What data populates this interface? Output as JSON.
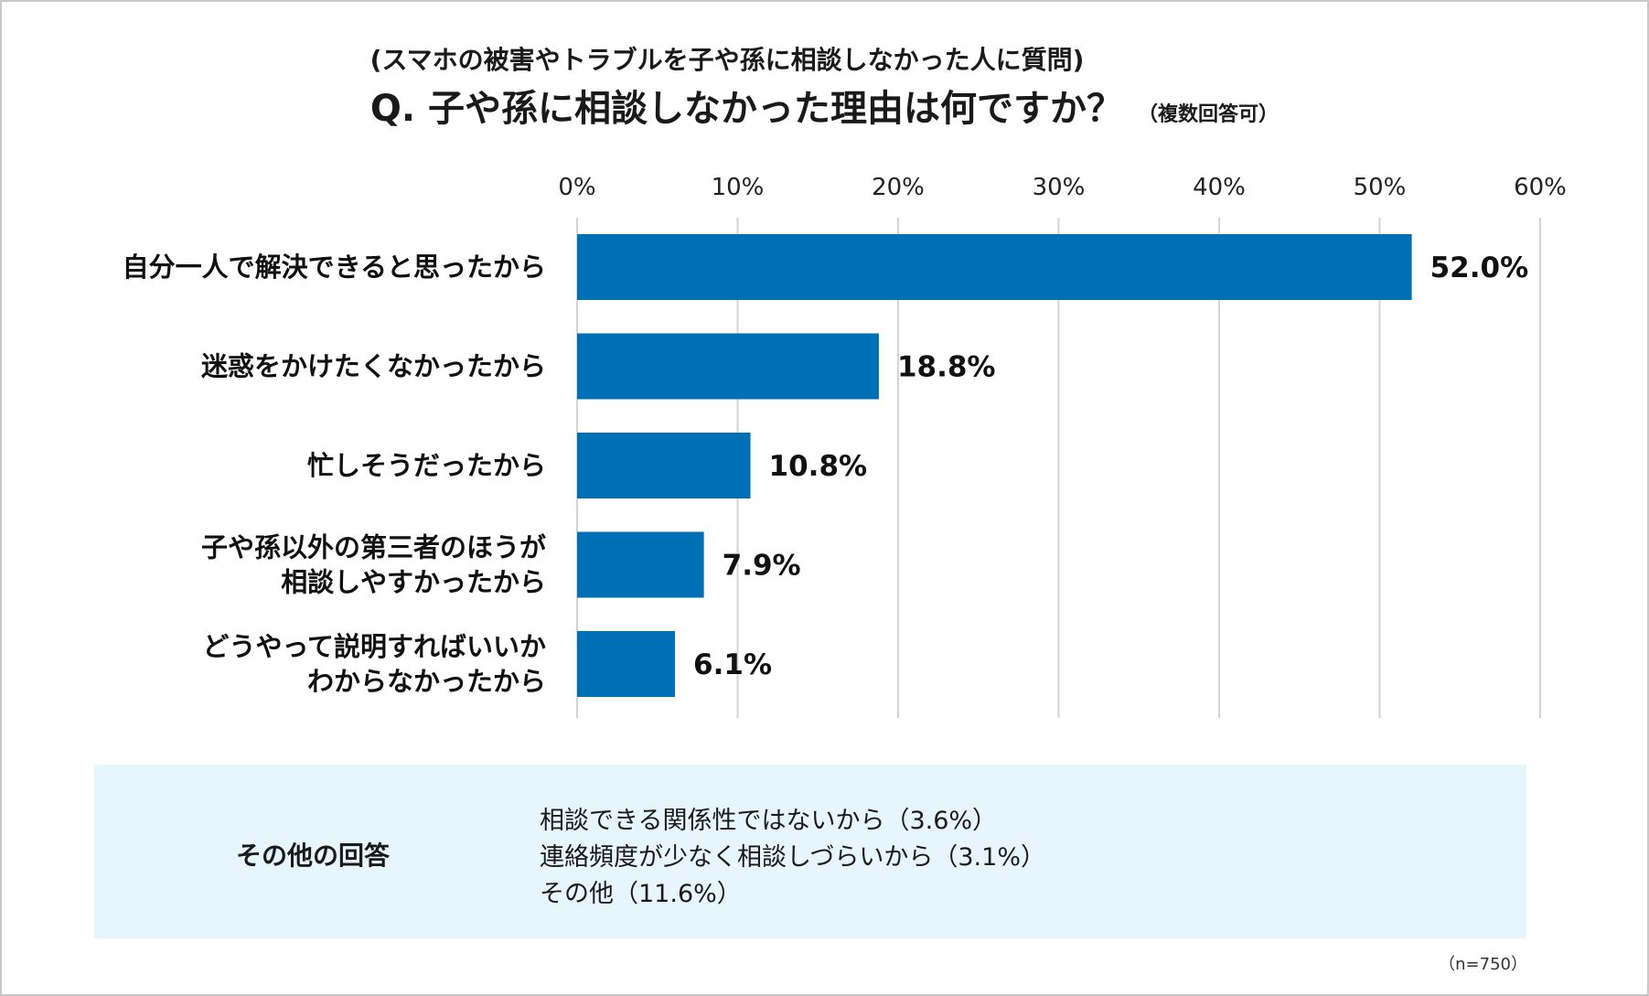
{
  "subtitle": "(スマホの被害やトラブルを子や孫に相談しなかった人に質問)",
  "title": "Q. 子や孫に相談しなかった理由は何ですか？",
  "title_note": "（複数回答可）",
  "chart_data": {
    "type": "bar",
    "orientation": "horizontal",
    "categories": [
      [
        "自分一人で解決できると思ったから"
      ],
      [
        "迷惑をかけたくなかったから"
      ],
      [
        "忙しそうだったから"
      ],
      [
        "子や孫以外の第三者のほうが",
        "相談しやすかったから"
      ],
      [
        "どうやって説明すればいいか",
        "わからなかったから"
      ]
    ],
    "values": [
      52.0,
      18.8,
      10.8,
      7.9,
      6.1
    ],
    "value_labels": [
      "52.0%",
      "18.8%",
      "10.8%",
      "7.9%",
      "6.1%"
    ],
    "xlim": [
      0,
      60
    ],
    "ticks": [
      "0%",
      "10%",
      "20%",
      "30%",
      "40%",
      "50%",
      "60%"
    ],
    "grid": true,
    "bar_color": "#0070b6"
  },
  "other": {
    "label": "その他の回答",
    "items": [
      "相談できる関係性ではないから（3.6%）",
      "連絡頻度が少なく相談しづらいから（3.1%）",
      "その他（11.6%）"
    ]
  },
  "sample_size": "（n=750）"
}
